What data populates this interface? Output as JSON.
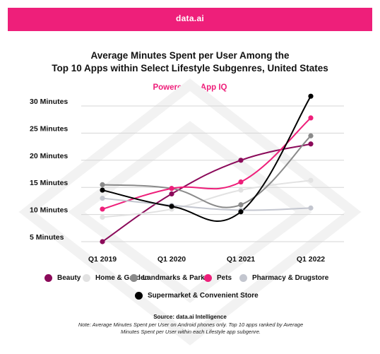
{
  "header": {
    "brand": "data.ai"
  },
  "title_line1": "Average Minutes Spent per User Among the",
  "title_line2": "Top 10 Apps within Select Lifestyle Subgenres, United States",
  "subtitle": "Powered by App IQ",
  "source": "Source: data.ai Intelligence",
  "note": "Note: Average Minutes Spent per User on Android phones only.  Top 10 apps ranked by Average Minutes Spent per User within each Lifestyle app subgenre.",
  "colors": {
    "brand_pink": "#ee1f7a"
  },
  "chart_data": {
    "type": "line",
    "categories": [
      "Q1 2019",
      "Q1 2020",
      "Q1 2021",
      "Q1 2022"
    ],
    "ylim": [
      5,
      30
    ],
    "yticks": [
      5,
      10,
      15,
      20,
      25,
      30
    ],
    "ytick_labels": [
      "5 Minutes",
      "10 Minutes",
      "15 Minutes",
      "20 Minutes",
      "25 Minutes",
      "30 Minutes"
    ],
    "grid": true,
    "legend_position": "bottom",
    "series": [
      {
        "name": "Beauty",
        "color": "#8b0a5a",
        "values": [
          5.0,
          13.8,
          20.0,
          23.0
        ]
      },
      {
        "name": "Home & Garden",
        "color": "#e2e2e2",
        "values": [
          9.5,
          11.0,
          14.5,
          16.3
        ]
      },
      {
        "name": "Landmarks & Parks",
        "color": "#8a8a8a",
        "values": [
          15.5,
          14.8,
          11.8,
          24.5
        ]
      },
      {
        "name": "Pets",
        "color": "#ee1f7a",
        "values": [
          11.0,
          14.8,
          16.0,
          27.8
        ]
      },
      {
        "name": "Pharmacy & Drugstore",
        "color": "#c3c6cf",
        "values": [
          13.0,
          11.7,
          10.8,
          11.2
        ]
      },
      {
        "name": "Supermarket & Convenient Store",
        "color": "#000000",
        "values": [
          14.5,
          11.5,
          10.5,
          31.8
        ]
      }
    ]
  }
}
